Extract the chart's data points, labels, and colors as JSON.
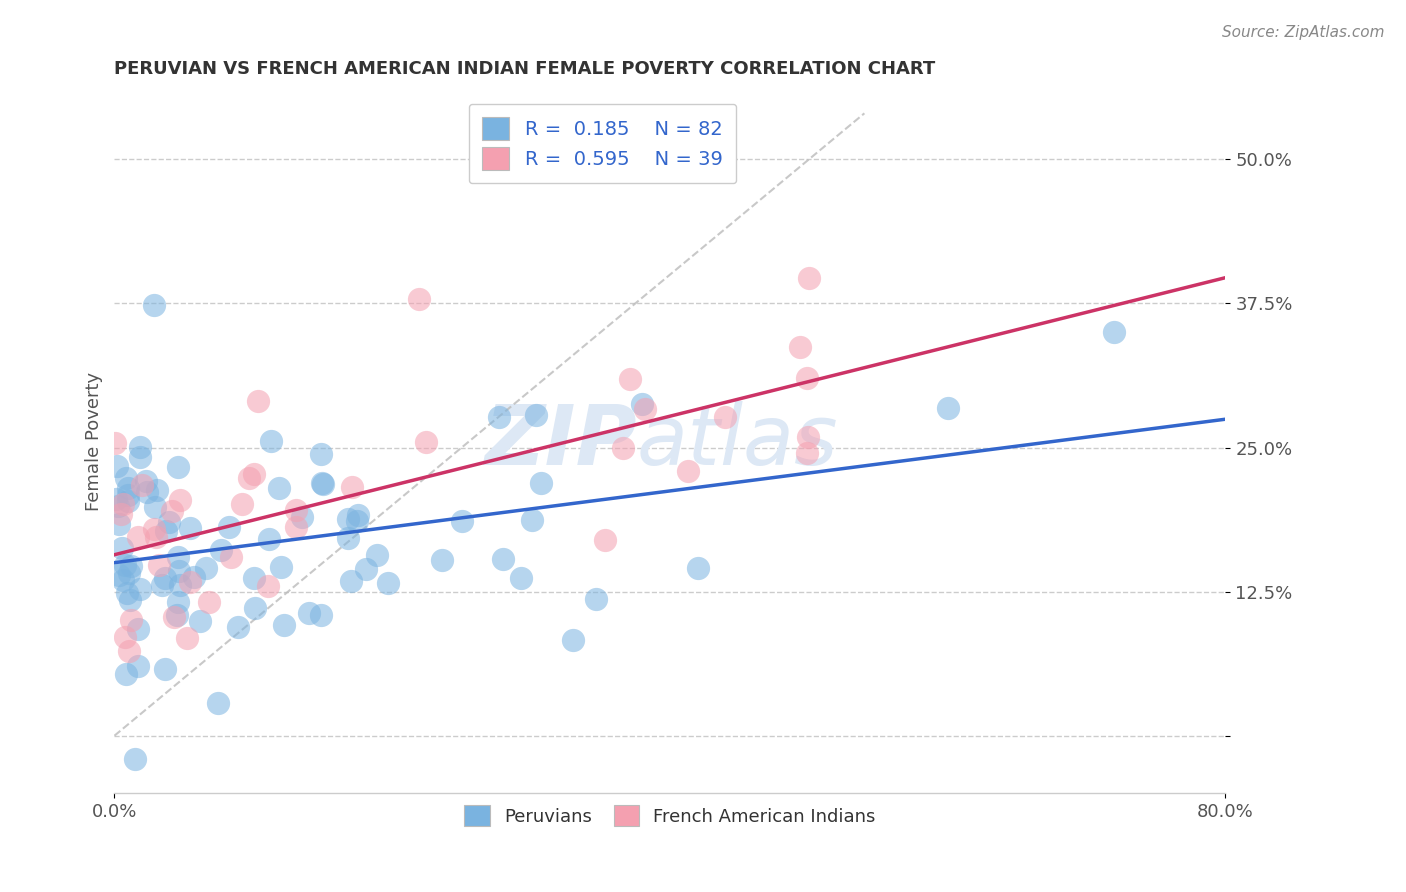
{
  "title": "PERUVIAN VS FRENCH AMERICAN INDIAN FEMALE POVERTY CORRELATION CHART",
  "source": "Source: ZipAtlas.com",
  "ylabel": "Female Poverty",
  "xlim": [
    0.0,
    0.8
  ],
  "ylim": [
    -0.05,
    0.56
  ],
  "yticks": [
    0.0,
    0.125,
    0.25,
    0.375,
    0.5
  ],
  "ytick_labels": [
    "",
    "12.5%",
    "25.0%",
    "37.5%",
    "50.0%"
  ],
  "grid_color": "#cccccc",
  "background_color": "#ffffff",
  "watermark_zip": "ZIP",
  "watermark_atlas": "atlas",
  "peruvian_color": "#7ab3e0",
  "french_color": "#f4a0b0",
  "peruvian_line_color": "#3366cc",
  "french_line_color": "#cc3366",
  "R_peruvian": 0.185,
  "N_peruvian": 82,
  "R_french": 0.595,
  "N_french": 39
}
